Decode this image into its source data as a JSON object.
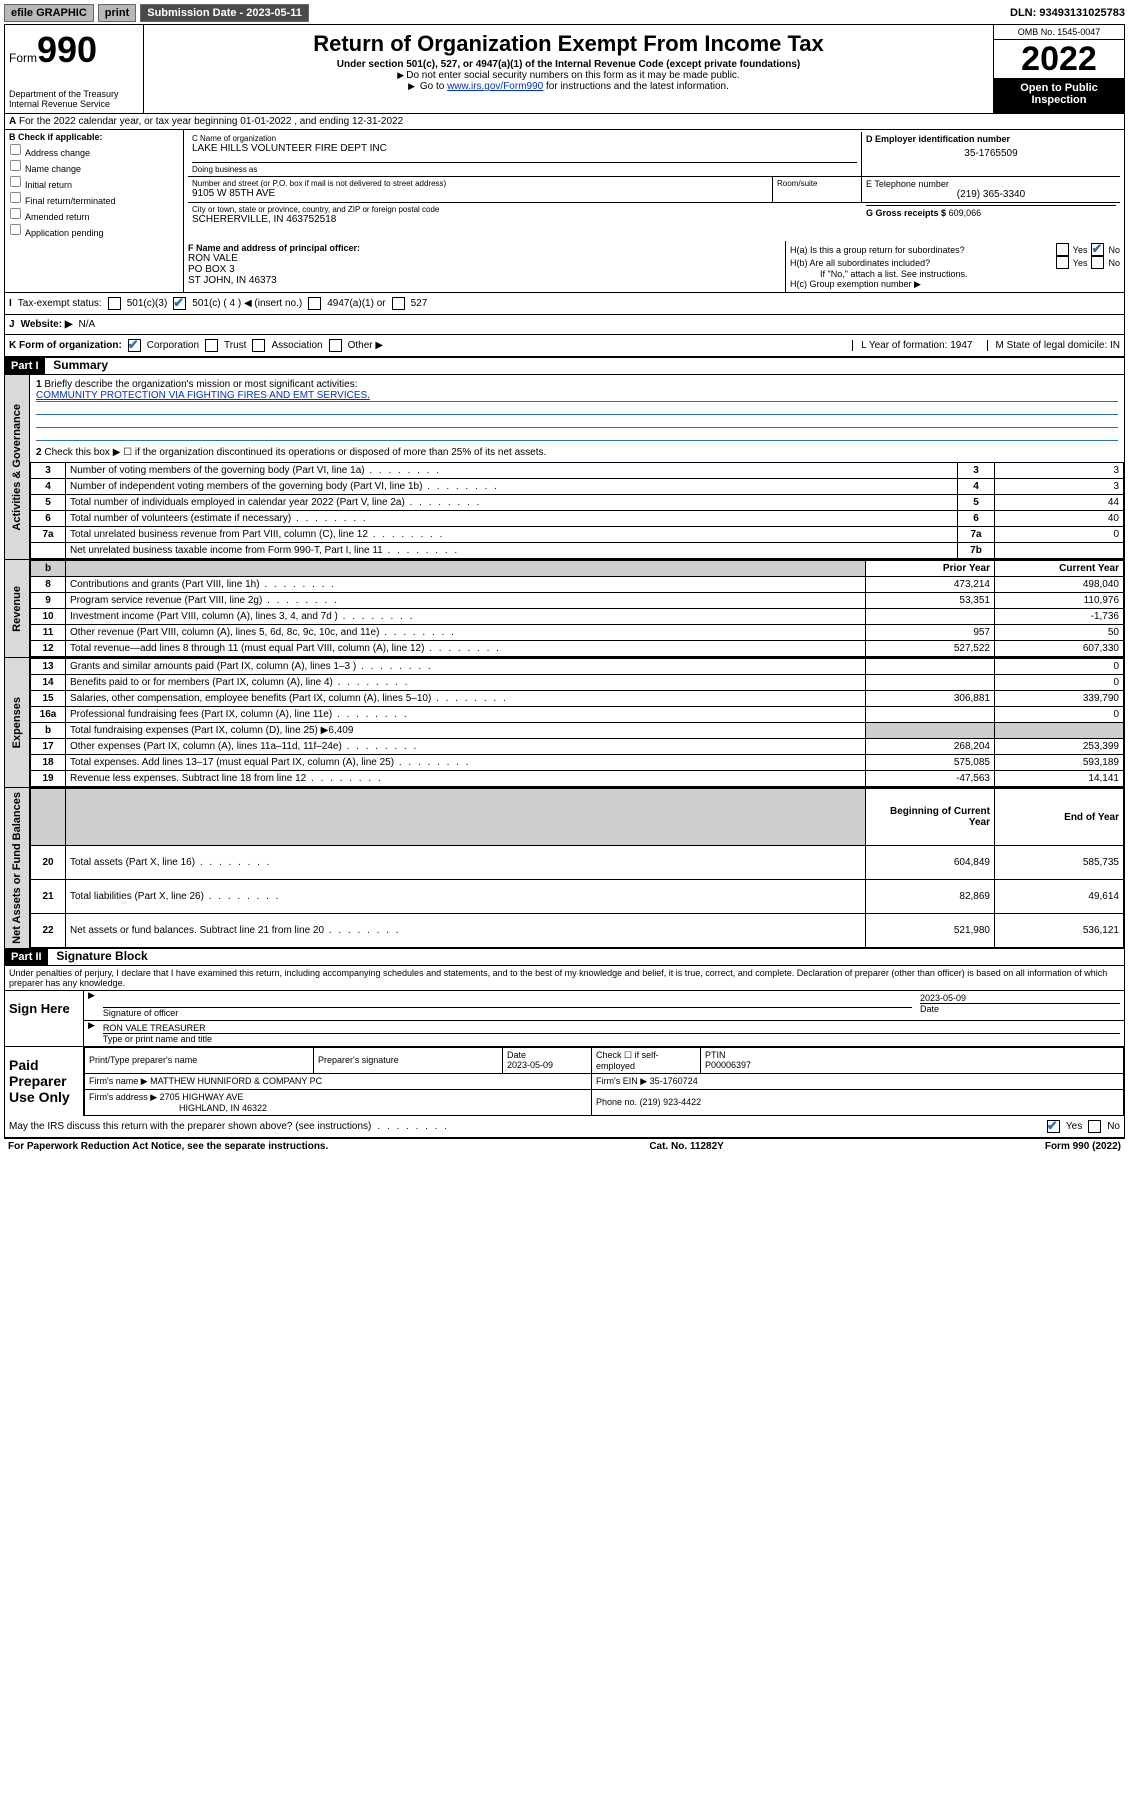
{
  "topbar": {
    "efile": "efile GRAPHIC",
    "print": "print",
    "subdate_label": "Submission Date - 2023-05-11",
    "dln": "DLN: 93493131025783"
  },
  "header": {
    "form_label": "Form",
    "form_num": "990",
    "dept": "Department of the Treasury\nInternal Revenue Service",
    "title": "Return of Organization Exempt From Income Tax",
    "sub": "Under section 501(c), 527, or 4947(a)(1) of the Internal Revenue Code (except private foundations)",
    "note1": "Do not enter social security numbers on this form as it may be made public.",
    "note2_pre": "Go to ",
    "note2_link": "www.irs.gov/Form990",
    "note2_post": " for instructions and the latest information.",
    "omb": "OMB No. 1545-0047",
    "year": "2022",
    "open": "Open to Public Inspection"
  },
  "A": {
    "label": "A",
    "text": "For the 2022 calendar year, or tax year beginning 01-01-2022    , and ending 12-31-2022"
  },
  "B": {
    "label": "B Check if applicable:",
    "items": [
      "Address change",
      "Name change",
      "Initial return",
      "Final return/terminated",
      "Amended return",
      "Application pending"
    ]
  },
  "C": {
    "name_label": "C Name of organization",
    "name": "LAKE HILLS VOLUNTEER FIRE DEPT INC",
    "dba_label": "Doing business as",
    "dba": "",
    "addr_label": "Number and street (or P.O. box if mail is not delivered to street address)",
    "suite_label": "Room/suite",
    "addr": "9105 W 85TH AVE",
    "city_label": "City or town, state or province, country, and ZIP or foreign postal code",
    "city": "SCHERERVILLE, IN  463752518"
  },
  "D": {
    "label": "D Employer identification number",
    "val": "35-1765509"
  },
  "E": {
    "label": "E Telephone number",
    "val": "(219) 365-3340"
  },
  "G": {
    "label": "G Gross receipts $",
    "val": "609,066"
  },
  "F": {
    "label": "F  Name and address of principal officer:",
    "name": "RON VALE",
    "addr1": "PO BOX 3",
    "addr2": "ST JOHN, IN  46373"
  },
  "H": {
    "a": "H(a)  Is this a group return for subordinates?",
    "b": "H(b)  Are all subordinates included?",
    "b_note": "If \"No,\" attach a list. See instructions.",
    "c": "H(c)  Group exemption number ▶"
  },
  "I": {
    "label": "Tax-exempt status:",
    "o1": "501(c)(3)",
    "o2": "501(c) ( 4 ) ◀ (insert no.)",
    "o3": "4947(a)(1) or",
    "o4": "527"
  },
  "J": {
    "label": "Website: ▶",
    "val": "N/A"
  },
  "K": {
    "label": "K Form of organization:",
    "o1": "Corporation",
    "o2": "Trust",
    "o3": "Association",
    "o4": "Other ▶",
    "L": "L Year of formation: 1947",
    "M": "M State of legal domicile: IN"
  },
  "part1": {
    "bar": "Part I",
    "title": "Summary",
    "q1": "Briefly describe the organization's mission or most significant activities:",
    "q1_ans": "COMMUNITY PROTECTION VIA FIGHTING FIRES AND EMT SERVICES.",
    "q2": "Check this box ▶ ☐  if the organization discontinued its operations or disposed of more than 25% of its net assets."
  },
  "gov_rows": [
    {
      "n": "3",
      "t": "Number of voting members of the governing body (Part VI, line 1a)",
      "box": "3",
      "v": "3"
    },
    {
      "n": "4",
      "t": "Number of independent voting members of the governing body (Part VI, line 1b)",
      "box": "4",
      "v": "3"
    },
    {
      "n": "5",
      "t": "Total number of individuals employed in calendar year 2022 (Part V, line 2a)",
      "box": "5",
      "v": "44"
    },
    {
      "n": "6",
      "t": "Total number of volunteers (estimate if necessary)",
      "box": "6",
      "v": "40"
    },
    {
      "n": "7a",
      "t": "Total unrelated business revenue from Part VIII, column (C), line 12",
      "box": "7a",
      "v": "0"
    },
    {
      "n": "",
      "t": "Net unrelated business taxable income from Form 990-T, Part I, line 11",
      "box": "7b",
      "v": ""
    }
  ],
  "fin_header": {
    "b": "b",
    "prior": "Prior Year",
    "current": "Current Year"
  },
  "rev_rows": [
    {
      "n": "8",
      "t": "Contributions and grants (Part VIII, line 1h)",
      "p": "473,214",
      "c": "498,040"
    },
    {
      "n": "9",
      "t": "Program service revenue (Part VIII, line 2g)",
      "p": "53,351",
      "c": "110,976"
    },
    {
      "n": "10",
      "t": "Investment income (Part VIII, column (A), lines 3, 4, and 7d )",
      "p": "",
      "c": "-1,736"
    },
    {
      "n": "11",
      "t": "Other revenue (Part VIII, column (A), lines 5, 6d, 8c, 9c, 10c, and 11e)",
      "p": "957",
      "c": "50"
    },
    {
      "n": "12",
      "t": "Total revenue—add lines 8 through 11 (must equal Part VIII, column (A), line 12)",
      "p": "527,522",
      "c": "607,330"
    }
  ],
  "exp_rows": [
    {
      "n": "13",
      "t": "Grants and similar amounts paid (Part IX, column (A), lines 1–3 )",
      "p": "",
      "c": "0"
    },
    {
      "n": "14",
      "t": "Benefits paid to or for members (Part IX, column (A), line 4)",
      "p": "",
      "c": "0"
    },
    {
      "n": "15",
      "t": "Salaries, other compensation, employee benefits (Part IX, column (A), lines 5–10)",
      "p": "306,881",
      "c": "339,790"
    },
    {
      "n": "16a",
      "t": "Professional fundraising fees (Part IX, column (A), line 11e)",
      "p": "",
      "c": "0"
    },
    {
      "n": "b",
      "t": "Total fundraising expenses (Part IX, column (D), line 25) ▶6,409",
      "p": "GREY",
      "c": "GREY"
    },
    {
      "n": "17",
      "t": "Other expenses (Part IX, column (A), lines 11a–11d, 11f–24e)",
      "p": "268,204",
      "c": "253,399"
    },
    {
      "n": "18",
      "t": "Total expenses. Add lines 13–17 (must equal Part IX, column (A), line 25)",
      "p": "575,085",
      "c": "593,189"
    },
    {
      "n": "19",
      "t": "Revenue less expenses. Subtract line 18 from line 12",
      "p": "-47,563",
      "c": "14,141"
    }
  ],
  "na_header": {
    "beg": "Beginning of Current Year",
    "end": "End of Year"
  },
  "na_rows": [
    {
      "n": "20",
      "t": "Total assets (Part X, line 16)",
      "p": "604,849",
      "c": "585,735"
    },
    {
      "n": "21",
      "t": "Total liabilities (Part X, line 26)",
      "p": "82,869",
      "c": "49,614"
    },
    {
      "n": "22",
      "t": "Net assets or fund balances. Subtract line 21 from line 20",
      "p": "521,980",
      "c": "536,121"
    }
  ],
  "part2": {
    "bar": "Part II",
    "title": "Signature Block",
    "perjury": "Under penalties of perjury, I declare that I have examined this return, including accompanying schedules and statements, and to the best of my knowledge and belief, it is true, correct, and complete. Declaration of preparer (other than officer) is based on all information of which preparer has any knowledge."
  },
  "sign": {
    "here": "Sign Here",
    "sig_label": "Signature of officer",
    "date_label": "Date",
    "date": "2023-05-09",
    "name": "RON VALE TREASURER",
    "name_label": "Type or print name and title"
  },
  "paid": {
    "here": "Paid Preparer Use Only",
    "h1": "Print/Type preparer's name",
    "h2": "Preparer's signature",
    "h3": "Date",
    "h3v": "2023-05-09",
    "h4": "Check ☐ if self-employed",
    "h5": "PTIN",
    "h5v": "P00006397",
    "firm_name_l": "Firm's name    ▶",
    "firm_name": "MATTHEW HUNNIFORD & COMPANY PC",
    "firm_ein_l": "Firm's EIN ▶",
    "firm_ein": "35-1760724",
    "firm_addr_l": "Firm's address ▶",
    "firm_addr1": "2705 HIGHWAY AVE",
    "firm_addr2": "HIGHLAND, IN  46322",
    "phone_l": "Phone no.",
    "phone": "(219) 923-4422"
  },
  "discuss": "May the IRS discuss this return with the preparer shown above? (see instructions)",
  "footer": {
    "l": "For Paperwork Reduction Act Notice, see the separate instructions.",
    "m": "Cat. No. 11282Y",
    "r": "Form 990 (2022)"
  },
  "side_labels": {
    "gov": "Activities & Governance",
    "rev": "Revenue",
    "exp": "Expenses",
    "na": "Net Assets or Fund Balances"
  },
  "yesno": {
    "yes": "Yes",
    "no": "No"
  }
}
